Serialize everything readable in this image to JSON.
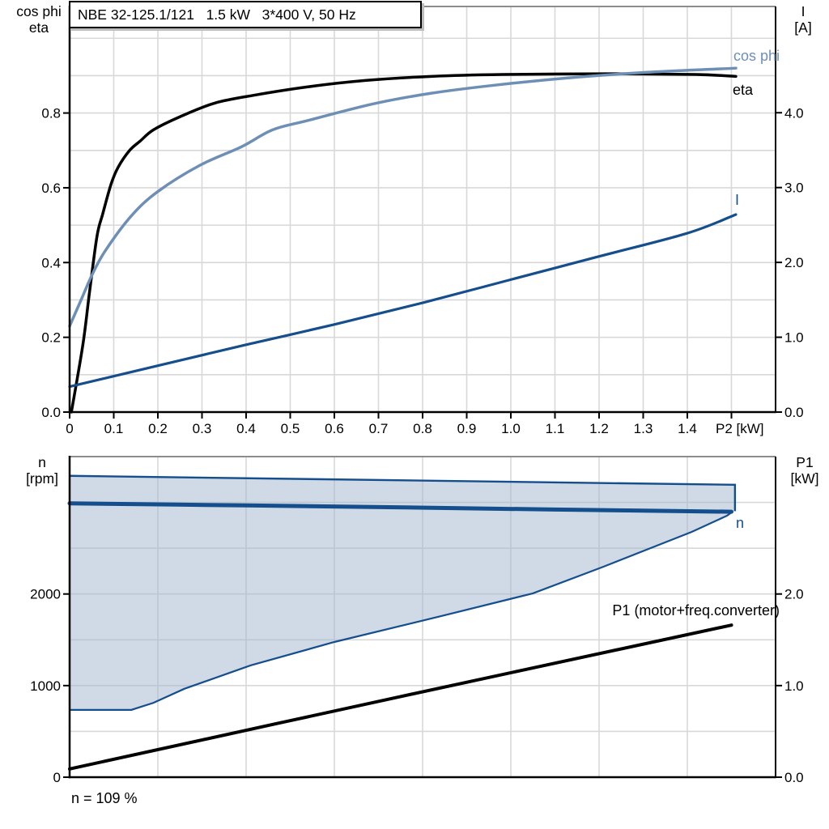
{
  "colors": {
    "black": "#000000",
    "steel_blue": "#6E8FB5",
    "dark_blue": "#154E8C",
    "area_fill": "#9FB5CD",
    "grid": "#D8D8D8",
    "frame_gray": "#8C8C8C"
  },
  "top_chart": {
    "left_axis_title_line1": "cos phi",
    "left_axis_title_line2": "eta",
    "right_axis_title_line1": "I",
    "right_axis_title_line2": "[A]",
    "curve_labels": {
      "cos_phi": "cos phi",
      "eta": "eta",
      "current": "I"
    }
  },
  "bottom_chart": {
    "left_axis_title_line1": "n",
    "left_axis_title_line2": "[rpm]",
    "right_axis_title_line1": "P1",
    "right_axis_title_line2": "[kW]",
    "curve_labels": {
      "speed": "n",
      "p1": "P1 (motor+freq.converter)"
    }
  },
  "chart_data": [
    {
      "type": "line",
      "title": "NBE 32-125.1/121   1.5 kW   3*400 V, 50 Hz",
      "xlabel": "P2 [kW]",
      "ylabel_left": "cos phi / eta",
      "ylabel_right": "I [A]",
      "x_range": [
        0,
        1.6
      ],
      "x_grid_step": 0.1,
      "x_ticks": {
        "step": 0.1,
        "labels": [
          "0",
          "0.1",
          "0.2",
          "0.3",
          "0.4",
          "0.5",
          "0.6",
          "0.7",
          "0.8",
          "0.9",
          "1.0",
          "1.1",
          "1.2",
          "1.3",
          "1.4"
        ],
        "extra_unlabeled": [
          1.5
        ]
      },
      "y_left_range": [
        0,
        1.085
      ],
      "y_left_grid_step": 0.1,
      "y_left_ticks": {
        "step": 0.2,
        "labels": [
          "0.0",
          "0.2",
          "0.4",
          "0.6",
          "0.8"
        ]
      },
      "y_right_range": [
        0,
        5.42
      ],
      "y_right_ticks": {
        "step": 1.0,
        "labels": [
          "0.0",
          "1.0",
          "2.0",
          "3.0",
          "4.0"
        ]
      },
      "legend_position": "inline-labels",
      "grid": true,
      "series": [
        {
          "name": "eta",
          "axis": "left",
          "color_key": "black",
          "width": 3.5,
          "points": [
            [
              0.004,
              0
            ],
            [
              0.03,
              0.18
            ],
            [
              0.045,
              0.32
            ],
            [
              0.062,
              0.47
            ],
            [
              0.075,
              0.53
            ],
            [
              0.094,
              0.61
            ],
            [
              0.11,
              0.655
            ],
            [
              0.136,
              0.7
            ],
            [
              0.16,
              0.725
            ],
            [
              0.19,
              0.755
            ],
            [
              0.25,
              0.79
            ],
            [
              0.33,
              0.827
            ],
            [
              0.42,
              0.848
            ],
            [
              0.54,
              0.87
            ],
            [
              0.67,
              0.887
            ],
            [
              0.82,
              0.898
            ],
            [
              0.98,
              0.903
            ],
            [
              1.22,
              0.905
            ],
            [
              1.42,
              0.903
            ],
            [
              1.51,
              0.898
            ]
          ]
        },
        {
          "name": "cos phi",
          "axis": "left",
          "color_key": "steel_blue",
          "width": 3.5,
          "points": [
            [
              0,
              0.23
            ],
            [
              0.026,
              0.3
            ],
            [
              0.05,
              0.365
            ],
            [
              0.08,
              0.43
            ],
            [
              0.14,
              0.525
            ],
            [
              0.2,
              0.59
            ],
            [
              0.295,
              0.66
            ],
            [
              0.39,
              0.71
            ],
            [
              0.46,
              0.755
            ],
            [
              0.54,
              0.78
            ],
            [
              0.69,
              0.825
            ],
            [
              0.82,
              0.853
            ],
            [
              0.96,
              0.874
            ],
            [
              1.13,
              0.894
            ],
            [
              1.31,
              0.909
            ],
            [
              1.51,
              0.92
            ]
          ]
        },
        {
          "name": "I",
          "axis": "right",
          "color_key": "dark_blue",
          "width": 3.2,
          "points": [
            [
              0,
              0.34
            ],
            [
              0.2,
              0.62
            ],
            [
              0.4,
              0.9
            ],
            [
              0.6,
              1.17
            ],
            [
              0.8,
              1.46
            ],
            [
              1.0,
              1.77
            ],
            [
              1.2,
              2.08
            ],
            [
              1.4,
              2.39
            ],
            [
              1.51,
              2.64
            ]
          ]
        }
      ]
    },
    {
      "type": "line",
      "xlabel": "",
      "ylabel_left": "n [rpm]",
      "ylabel_right": "P1 [kW]",
      "annotation": "n = 109 %",
      "x_range": [
        0,
        1.6
      ],
      "x_grid_step": 0.2,
      "y_left_range": [
        0,
        3500
      ],
      "y_left_grid_step": 500,
      "y_left_ticks": {
        "step": 1000,
        "labels": [
          "0",
          "1000",
          "2000"
        ]
      },
      "y_right_range": [
        0,
        3.5
      ],
      "y_right_ticks": {
        "step": 1.0,
        "labels": [
          "0.0",
          "1.0",
          "2.0"
        ]
      },
      "grid": true,
      "operating_area": {
        "upper_rpm": [
          [
            0,
            3290
          ],
          [
            1.508,
            3192
          ]
        ],
        "right_edge_rpm": [
          [
            1.508,
            3192
          ],
          [
            1.508,
            2905
          ]
        ],
        "lower_rpm": [
          [
            0,
            735
          ],
          [
            0.14,
            735
          ],
          [
            0.19,
            812
          ],
          [
            0.26,
            965
          ],
          [
            0.41,
            1220
          ],
          [
            0.6,
            1476
          ],
          [
            0.85,
            1768
          ],
          [
            1.05,
            2007
          ],
          [
            1.21,
            2298
          ],
          [
            1.41,
            2678
          ],
          [
            1.49,
            2855
          ],
          [
            1.503,
            2900
          ]
        ]
      },
      "series": [
        {
          "name": "n",
          "axis": "left",
          "color_key": "dark_blue",
          "width": 5,
          "points": [
            [
              0,
              2990
            ],
            [
              0.4,
              2967
            ],
            [
              0.76,
              2945
            ],
            [
              1.1,
              2922
            ],
            [
              1.5,
              2898
            ]
          ]
        },
        {
          "name": "P1 (motor+freq.converter)",
          "axis": "right",
          "color_key": "black",
          "width": 4,
          "points": [
            [
              0,
              0.09
            ],
            [
              0.75,
              0.88
            ],
            [
              1.5,
              1.66
            ]
          ]
        }
      ]
    }
  ]
}
